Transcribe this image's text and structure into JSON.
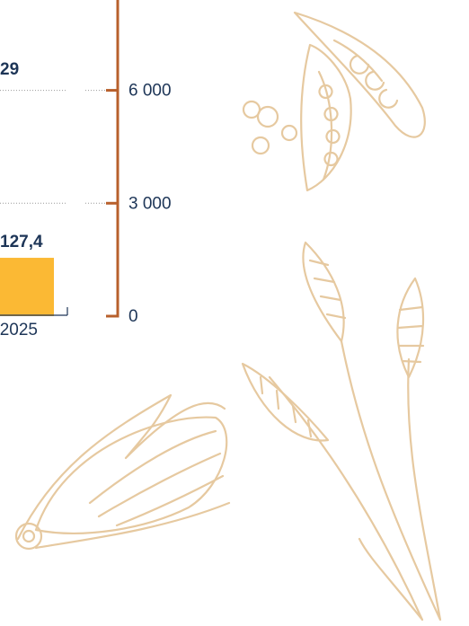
{
  "chart_data": {
    "type": "bar",
    "categories": [
      "2025"
    ],
    "values": [
      1550
    ],
    "color": "#fbb934",
    "ylim": [
      0,
      8400
    ],
    "yticks": [
      0,
      {
        "value": 3000,
        "label": "3 000"
      },
      {
        "value": 6000,
        "label": "6 000"
      }
    ],
    "grid": true,
    "axis_color": "#b8602c",
    "annotations": [
      "29",
      "127,4"
    ]
  }
}
